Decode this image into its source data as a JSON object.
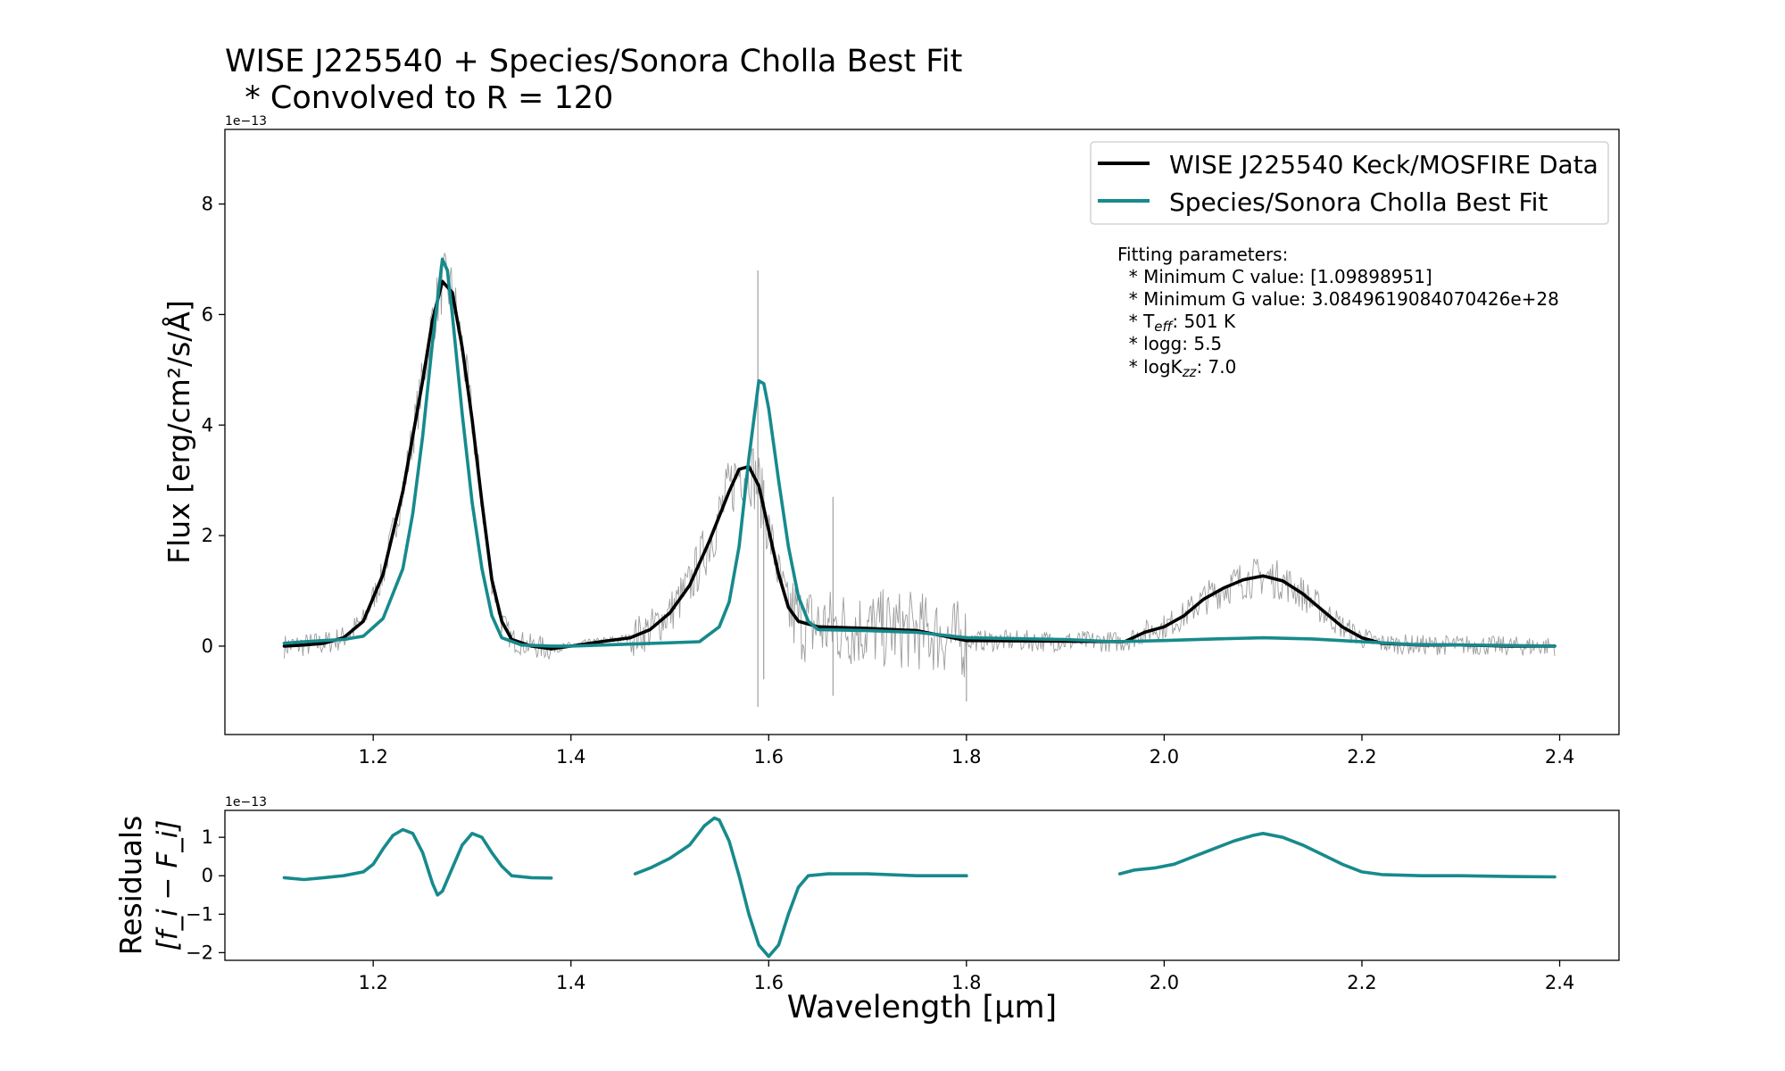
{
  "title_line1": "WISE J225540 + Species/Sonora Cholla Best Fit",
  "title_line2": "  * Convolved to R = 120",
  "colors": {
    "data_smooth": "#000000",
    "data_raw": "#8c8c8c",
    "model": "#178a8c"
  },
  "chart_data": [
    {
      "type": "line",
      "panel": "spectrum",
      "xlabel": "",
      "ylabel": "Flux [erg/cm²/s/Å]",
      "offset_label": "1e−13",
      "xlim": [
        1.05,
        2.46
      ],
      "ylim": [
        -1.6,
        9.35
      ],
      "xticks": [
        "1.2",
        "1.4",
        "1.6",
        "1.8",
        "2.0",
        "2.2",
        "2.4"
      ],
      "yticks": [
        "0",
        "2",
        "4",
        "6",
        "8"
      ],
      "legend": {
        "placement": "upper right",
        "entries": [
          "WISE J225540 Keck/MOSFIRE Data",
          "Species/Sonora Cholla Best Fit"
        ]
      },
      "annotation": {
        "header": "Fitting parameters:",
        "c_value": "  * Minimum C value: [1.09898951]",
        "g_value": "  * Minimum G value: 3.0849619084070426e+28",
        "teff_prefix": "  * T",
        "teff_sub": "eff",
        "teff_value": ": 501 K",
        "logg": "  * logg: 5.5",
        "kzz_prefix": "  * logK",
        "kzz_sub": "zz",
        "kzz_value": ": 7.0"
      },
      "series": [
        {
          "name": "WISE J225540 Keck/MOSFIRE Data",
          "segments": [
            [
              [
                1.11,
                0.0
              ],
              [
                1.13,
                0.02
              ],
              [
                1.15,
                0.05
              ],
              [
                1.17,
                0.15
              ],
              [
                1.19,
                0.45
              ],
              [
                1.21,
                1.3
              ],
              [
                1.23,
                2.8
              ],
              [
                1.25,
                4.8
              ],
              [
                1.26,
                5.9
              ],
              [
                1.27,
                6.6
              ],
              [
                1.28,
                6.4
              ],
              [
                1.29,
                5.4
              ],
              [
                1.3,
                4.1
              ],
              [
                1.31,
                2.6
              ],
              [
                1.32,
                1.2
              ],
              [
                1.33,
                0.45
              ],
              [
                1.34,
                0.12
              ],
              [
                1.36,
                0.0
              ],
              [
                1.38,
                -0.05
              ]
            ],
            [
              [
                1.38,
                -0.05
              ],
              [
                1.4,
                0.0
              ],
              [
                1.43,
                0.08
              ],
              [
                1.46,
                0.15
              ],
              [
                1.48,
                0.3
              ],
              [
                1.5,
                0.6
              ],
              [
                1.52,
                1.1
              ],
              [
                1.54,
                1.9
              ],
              [
                1.56,
                2.8
              ],
              [
                1.57,
                3.2
              ],
              [
                1.58,
                3.25
              ],
              [
                1.59,
                2.9
              ],
              [
                1.6,
                2.1
              ],
              [
                1.61,
                1.3
              ],
              [
                1.62,
                0.7
              ],
              [
                1.63,
                0.45
              ],
              [
                1.65,
                0.35
              ],
              [
                1.7,
                0.32
              ],
              [
                1.75,
                0.28
              ],
              [
                1.8,
                0.1
              ]
            ],
            [
              [
                1.8,
                0.1
              ],
              [
                1.9,
                0.09
              ],
              [
                1.96,
                0.08
              ],
              [
                1.98,
                0.25
              ],
              [
                2.0,
                0.35
              ],
              [
                2.02,
                0.55
              ],
              [
                2.04,
                0.85
              ],
              [
                2.06,
                1.05
              ],
              [
                2.08,
                1.2
              ],
              [
                2.1,
                1.27
              ],
              [
                2.12,
                1.18
              ],
              [
                2.14,
                0.95
              ],
              [
                2.16,
                0.65
              ],
              [
                2.18,
                0.35
              ],
              [
                2.2,
                0.15
              ],
              [
                2.22,
                0.05
              ],
              [
                2.26,
                0.02
              ],
              [
                2.3,
                0.02
              ],
              [
                2.35,
                0.0
              ],
              [
                2.395,
                0.0
              ]
            ]
          ]
        },
        {
          "name": "Species/Sonora Cholla Best Fit",
          "segments": [
            [
              [
                1.11,
                0.05
              ],
              [
                1.13,
                0.08
              ],
              [
                1.15,
                0.1
              ],
              [
                1.17,
                0.12
              ],
              [
                1.19,
                0.18
              ],
              [
                1.21,
                0.5
              ],
              [
                1.23,
                1.4
              ],
              [
                1.24,
                2.4
              ],
              [
                1.25,
                3.8
              ],
              [
                1.26,
                5.5
              ],
              [
                1.27,
                7.0
              ],
              [
                1.275,
                6.8
              ],
              [
                1.28,
                6.0
              ],
              [
                1.29,
                4.2
              ],
              [
                1.3,
                2.6
              ],
              [
                1.31,
                1.4
              ],
              [
                1.32,
                0.55
              ],
              [
                1.33,
                0.15
              ],
              [
                1.35,
                0.02
              ],
              [
                1.38,
                0.0
              ],
              [
                1.4,
                0.0
              ]
            ],
            [
              [
                1.4,
                0.0
              ],
              [
                1.45,
                0.03
              ],
              [
                1.5,
                0.06
              ],
              [
                1.53,
                0.08
              ],
              [
                1.55,
                0.35
              ],
              [
                1.56,
                0.8
              ],
              [
                1.57,
                1.8
              ],
              [
                1.58,
                3.4
              ],
              [
                1.59,
                4.8
              ],
              [
                1.595,
                4.75
              ],
              [
                1.6,
                4.3
              ],
              [
                1.61,
                3.0
              ],
              [
                1.62,
                1.8
              ],
              [
                1.63,
                0.9
              ],
              [
                1.64,
                0.45
              ],
              [
                1.65,
                0.3
              ],
              [
                1.7,
                0.28
              ],
              [
                1.75,
                0.25
              ],
              [
                1.8,
                0.15
              ]
            ],
            [
              [
                1.8,
                0.15
              ],
              [
                1.9,
                0.12
              ],
              [
                1.95,
                0.08
              ],
              [
                2.0,
                0.1
              ],
              [
                2.05,
                0.13
              ],
              [
                2.1,
                0.15
              ],
              [
                2.15,
                0.13
              ],
              [
                2.2,
                0.08
              ],
              [
                2.25,
                0.03
              ],
              [
                2.3,
                0.02
              ],
              [
                2.35,
                0.01
              ],
              [
                2.395,
                0.0
              ]
            ]
          ]
        }
      ]
    },
    {
      "type": "line",
      "panel": "residuals",
      "xlabel": "Wavelength [µm]",
      "ylabel_line1": "Residuals",
      "ylabel_line2": "[f_i − F_i]",
      "offset_label": "1e−13",
      "xlim": [
        1.05,
        2.46
      ],
      "ylim": [
        -2.2,
        1.7
      ],
      "xticks": [
        "1.2",
        "1.4",
        "1.6",
        "1.8",
        "2.0",
        "2.2",
        "2.4"
      ],
      "yticks": [
        "1",
        "0",
        "−1",
        "−2"
      ],
      "series": [
        {
          "name": "",
          "segments": [
            [
              [
                1.11,
                -0.05
              ],
              [
                1.13,
                -0.1
              ],
              [
                1.15,
                -0.05
              ],
              [
                1.17,
                0.0
              ],
              [
                1.19,
                0.1
              ],
              [
                1.2,
                0.3
              ],
              [
                1.21,
                0.7
              ],
              [
                1.22,
                1.05
              ],
              [
                1.23,
                1.2
              ],
              [
                1.24,
                1.1
              ],
              [
                1.25,
                0.6
              ],
              [
                1.26,
                -0.2
              ],
              [
                1.265,
                -0.5
              ],
              [
                1.27,
                -0.4
              ],
              [
                1.28,
                0.2
              ],
              [
                1.29,
                0.8
              ],
              [
                1.3,
                1.1
              ],
              [
                1.31,
                1.0
              ],
              [
                1.32,
                0.6
              ],
              [
                1.33,
                0.25
              ],
              [
                1.34,
                0.0
              ],
              [
                1.36,
                -0.05
              ],
              [
                1.38,
                -0.06
              ]
            ],
            [
              [
                1.465,
                0.05
              ],
              [
                1.48,
                0.2
              ],
              [
                1.5,
                0.45
              ],
              [
                1.52,
                0.8
              ],
              [
                1.535,
                1.3
              ],
              [
                1.545,
                1.5
              ],
              [
                1.55,
                1.45
              ],
              [
                1.56,
                0.9
              ],
              [
                1.57,
                0.0
              ],
              [
                1.58,
                -1.0
              ],
              [
                1.59,
                -1.8
              ],
              [
                1.6,
                -2.1
              ],
              [
                1.61,
                -1.8
              ],
              [
                1.62,
                -1.0
              ],
              [
                1.63,
                -0.3
              ],
              [
                1.64,
                0.0
              ],
              [
                1.66,
                0.05
              ],
              [
                1.7,
                0.05
              ],
              [
                1.75,
                0.0
              ],
              [
                1.8,
                0.0
              ]
            ],
            [
              [
                1.955,
                0.05
              ],
              [
                1.97,
                0.15
              ],
              [
                1.99,
                0.2
              ],
              [
                2.01,
                0.3
              ],
              [
                2.03,
                0.5
              ],
              [
                2.05,
                0.7
              ],
              [
                2.07,
                0.9
              ],
              [
                2.09,
                1.05
              ],
              [
                2.1,
                1.1
              ],
              [
                2.12,
                1.0
              ],
              [
                2.14,
                0.8
              ],
              [
                2.16,
                0.55
              ],
              [
                2.18,
                0.3
              ],
              [
                2.2,
                0.1
              ],
              [
                2.22,
                0.03
              ],
              [
                2.26,
                0.0
              ],
              [
                2.3,
                0.0
              ],
              [
                2.35,
                -0.02
              ],
              [
                2.395,
                -0.03
              ]
            ]
          ]
        }
      ]
    }
  ]
}
